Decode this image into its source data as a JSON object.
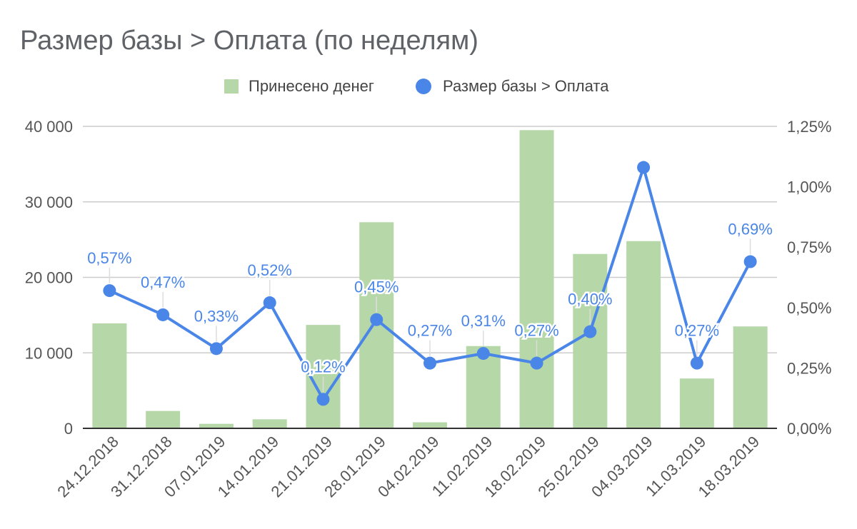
{
  "title": "Размер базы > Оплата (по неделям)",
  "legend": {
    "bars_label": "Принесено денег",
    "line_label": "Размер базы > Оплата"
  },
  "colors": {
    "bars": "#b6d7a8",
    "line": "#4a86e8",
    "axis_text": "#555555",
    "grid": "#cccccc"
  },
  "chart_data": {
    "type": "bar",
    "title": "Размер базы > Оплата (по неделям)",
    "xlabel": "",
    "categories": [
      "24.12.2018",
      "31.12.2018",
      "07.01.2019",
      "14.01.2019",
      "21.01.2019",
      "28.01.2019",
      "04.02.2019",
      "11.02.2019",
      "18.02.2019",
      "25.02.2019",
      "04.03.2019",
      "11.03.2019",
      "18.03.2019"
    ],
    "y_left": {
      "ylim": [
        0,
        40000
      ],
      "ticks": [
        "0",
        "10 000",
        "20 000",
        "30 000",
        "40 000"
      ]
    },
    "y_right": {
      "ylim": [
        0,
        1.25
      ],
      "ticks": [
        "0,00%",
        "0,25%",
        "0,50%",
        "0,75%",
        "1,00%",
        "1,25%"
      ]
    },
    "grid": true,
    "legend_position": "top",
    "series": [
      {
        "name": "Принесено денег",
        "type": "bar",
        "axis": "left",
        "values": [
          13900,
          2300,
          600,
          1200,
          13700,
          27300,
          800,
          10900,
          39500,
          23100,
          24800,
          6600,
          13500
        ]
      },
      {
        "name": "Размер базы > Оплата",
        "type": "line",
        "axis": "right",
        "values": [
          0.57,
          0.47,
          0.33,
          0.52,
          0.12,
          0.45,
          0.27,
          0.31,
          0.27,
          0.4,
          1.08,
          0.27,
          0.69
        ],
        "labels": [
          "0,57%",
          "0,47%",
          "0,33%",
          "0,52%",
          "0,12%",
          "0,45%",
          "0,27%",
          "0,31%",
          "0,27%",
          "0,40%",
          "",
          "0,27%",
          "0,69%"
        ]
      }
    ]
  }
}
